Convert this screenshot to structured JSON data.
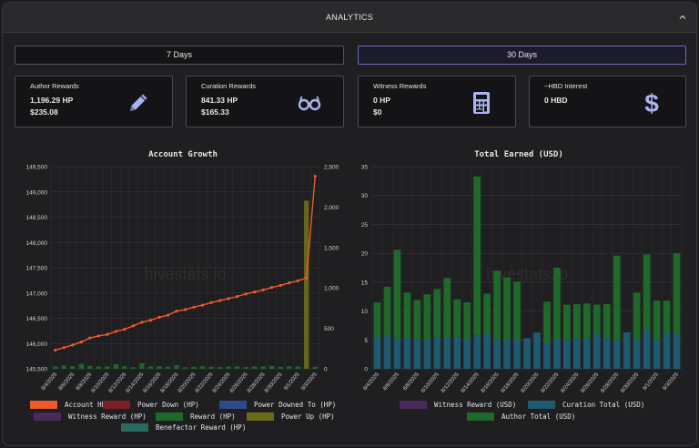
{
  "header": {
    "title": "ANALYTICS",
    "collapse_icon": "chevron-up-icon"
  },
  "range": {
    "seven_days": "7 Days",
    "thirty_days": "30 Days",
    "active": "30 Days"
  },
  "cards": [
    {
      "title": "Author Rewards",
      "line1": "1,196.29 HP",
      "line2": "$235.08",
      "icon": "pencil-icon",
      "icon_color": "#a9b4f0"
    },
    {
      "title": "Curation Rewards",
      "line1": "841.33 HP",
      "line2": "$165.33",
      "icon": "glasses-icon",
      "icon_color": "#a9b4f0"
    },
    {
      "title": "Witness Rewards",
      "line1": "0 HP",
      "line2": "$0",
      "icon": "calculator-icon",
      "icon_color": "#a9b4f0"
    },
    {
      "title": "~HBD Interest",
      "line1": "0 HBD",
      "line2": "",
      "icon": "dollar-icon",
      "icon_color": "#a9b4f0"
    }
  ],
  "charts": {
    "account_growth": {
      "title": "Account Growth",
      "watermark": "hivestats.io",
      "left_ticks": [
        "149,500",
        "149,000",
        "148,500",
        "148,000",
        "147,500",
        "147,000",
        "146,500",
        "146,000",
        "145,500"
      ],
      "right_ticks": [
        "2,500",
        "2,000",
        "1,500",
        "1,000",
        "500",
        "0"
      ],
      "legend": [
        {
          "label": "Account HP",
          "color": "#f05a28"
        },
        {
          "label": "Power Down (HP)",
          "color": "#7a1f24"
        },
        {
          "label": "Power Downed To (HP)",
          "color": "#2f4a8a"
        },
        {
          "label": "Witness Reward (HP)",
          "color": "#4a2a5a"
        },
        {
          "label": "Reward (HP)",
          "color": "#1f6a2a"
        },
        {
          "label": "Power Up (HP)",
          "color": "#6b6a1a"
        },
        {
          "label": "Benefactor Reward (HP)",
          "color": "#2a6a60"
        }
      ]
    },
    "total_earned": {
      "title": "Total Earned (USD)",
      "watermark": "hivestats.io",
      "legend": [
        {
          "label": "Witness Reward (USD)",
          "color": "#4a2a5a"
        },
        {
          "label": "Curation Total (USD)",
          "color": "#1e5a70"
        },
        {
          "label": "Author Total (USD)",
          "color": "#1f6a2a"
        }
      ]
    }
  },
  "chart_data": [
    {
      "type": "line",
      "title": "Account Growth",
      "x": [
        "8/4/2025",
        "8/5/2025",
        "8/6/2025",
        "8/7/2025",
        "8/8/2025",
        "8/9/2025",
        "8/10/2025",
        "8/11/2025",
        "8/12/2025",
        "8/13/2025",
        "8/14/2025",
        "8/15/2025",
        "8/16/2025",
        "8/17/2025",
        "8/18/2025",
        "8/19/2025",
        "8/20/2025",
        "8/21/2025",
        "8/22/2025",
        "8/23/2025",
        "8/24/2025",
        "8/25/2025",
        "8/26/2025",
        "8/27/2025",
        "8/28/2025",
        "8/29/2025",
        "8/30/2025",
        "8/31/2025",
        "9/1/2025",
        "9/2/2025",
        "9/3/2025"
      ],
      "x_labels_shown": [
        "8/4/2025",
        "8/6/2025",
        "8/8/2025",
        "8/10/2025",
        "8/12/2025",
        "8/14/2025",
        "8/16/2025",
        "8/18/2025",
        "8/20/2025",
        "8/22/2025",
        "8/24/2025",
        "8/26/2025",
        "8/28/2025",
        "8/30/2025",
        "9/1/2025",
        "9/3/2025"
      ],
      "ylim_left": [
        145500,
        149500
      ],
      "ylim_right": [
        0,
        2500
      ],
      "series": [
        {
          "name": "Account HP",
          "axis": "left",
          "kind": "line",
          "values": [
            145870,
            145920,
            145970,
            146030,
            146110,
            146150,
            146180,
            146240,
            146280,
            146350,
            146420,
            146460,
            146520,
            146560,
            146640,
            146670,
            146720,
            146760,
            146810,
            146850,
            146890,
            146930,
            146980,
            147020,
            147060,
            147110,
            147150,
            147200,
            147240,
            147300,
            149310
          ]
        },
        {
          "name": "Reward (HP)",
          "axis": "right",
          "kind": "bar",
          "values": [
            30,
            40,
            32,
            60,
            35,
            28,
            30,
            55,
            32,
            20,
            70,
            30,
            32,
            25,
            45,
            18,
            25,
            32,
            25,
            22,
            28,
            30,
            22,
            28,
            30,
            35,
            25,
            30,
            28,
            20,
            25
          ]
        },
        {
          "name": "Power Up (HP)",
          "axis": "right",
          "kind": "bar",
          "values": [
            0,
            0,
            0,
            0,
            0,
            0,
            0,
            0,
            0,
            0,
            0,
            0,
            0,
            0,
            0,
            0,
            0,
            0,
            0,
            0,
            0,
            0,
            0,
            0,
            0,
            0,
            0,
            0,
            0,
            2080,
            0
          ]
        }
      ]
    },
    {
      "type": "bar",
      "title": "Total Earned (USD)",
      "categories": [
        "8/4/2025",
        "8/5/2025",
        "8/6/2025",
        "8/7/2025",
        "8/8/2025",
        "8/9/2025",
        "8/10/2025",
        "8/11/2025",
        "8/12/2025",
        "8/13/2025",
        "8/14/2025",
        "8/15/2025",
        "8/16/2025",
        "8/17/2025",
        "8/18/2025",
        "8/19/2025",
        "8/20/2025",
        "8/21/2025",
        "8/22/2025",
        "8/23/2025",
        "8/24/2025",
        "8/25/2025",
        "8/26/2025",
        "8/27/2025",
        "8/28/2025",
        "8/29/2025",
        "8/30/2025",
        "8/31/2025",
        "9/1/2025",
        "9/2/2025",
        "9/3/2025"
      ],
      "x_labels_shown": [
        "8/4/2025",
        "8/6/2025",
        "8/8/2025",
        "8/10/2025",
        "8/12/2025",
        "8/14/2025",
        "8/16/2025",
        "8/18/2025",
        "8/20/2025",
        "8/22/2025",
        "8/24/2025",
        "8/26/2025",
        "8/28/2025",
        "8/30/2025",
        "9/1/2025",
        "9/3/2025"
      ],
      "ylim": [
        0,
        35
      ],
      "y_ticks": [
        0,
        5,
        10,
        15,
        20,
        25,
        30,
        35
      ],
      "stacked": true,
      "series": [
        {
          "name": "Curation Total (USD)",
          "values": [
            5.5,
            5.7,
            5.0,
            5.3,
            5.2,
            5.0,
            5.5,
            5.3,
            5.4,
            5.2,
            5.8,
            6.0,
            5.2,
            5.0,
            5.0,
            5.3,
            6.3,
            4.5,
            5.2,
            5.0,
            5.3,
            5.2,
            6.0,
            5.3,
            5.0,
            6.3,
            5.0,
            6.7,
            5.0,
            6.2,
            6.0
          ]
        },
        {
          "name": "Author Total (USD)",
          "values": [
            6.0,
            8.5,
            15.6,
            7.9,
            6.7,
            7.9,
            8.3,
            10.4,
            6.6,
            6.3,
            27.5,
            7.0,
            11.8,
            10.8,
            10.1,
            0,
            0,
            7.1,
            12.3,
            6.1,
            5.9,
            6.1,
            5.1,
            5.9,
            14.6,
            0,
            8.2,
            13.1,
            6.8,
            5.6,
            14.0
          ]
        },
        {
          "name": "Witness Reward (USD)",
          "values": [
            0,
            0,
            0,
            0,
            0,
            0,
            0,
            0,
            0,
            0,
            0,
            0,
            0,
            0,
            0,
            0,
            0,
            0,
            0,
            0,
            0,
            0,
            0,
            0,
            0,
            0,
            0,
            0,
            0,
            0,
            0
          ]
        }
      ]
    }
  ]
}
